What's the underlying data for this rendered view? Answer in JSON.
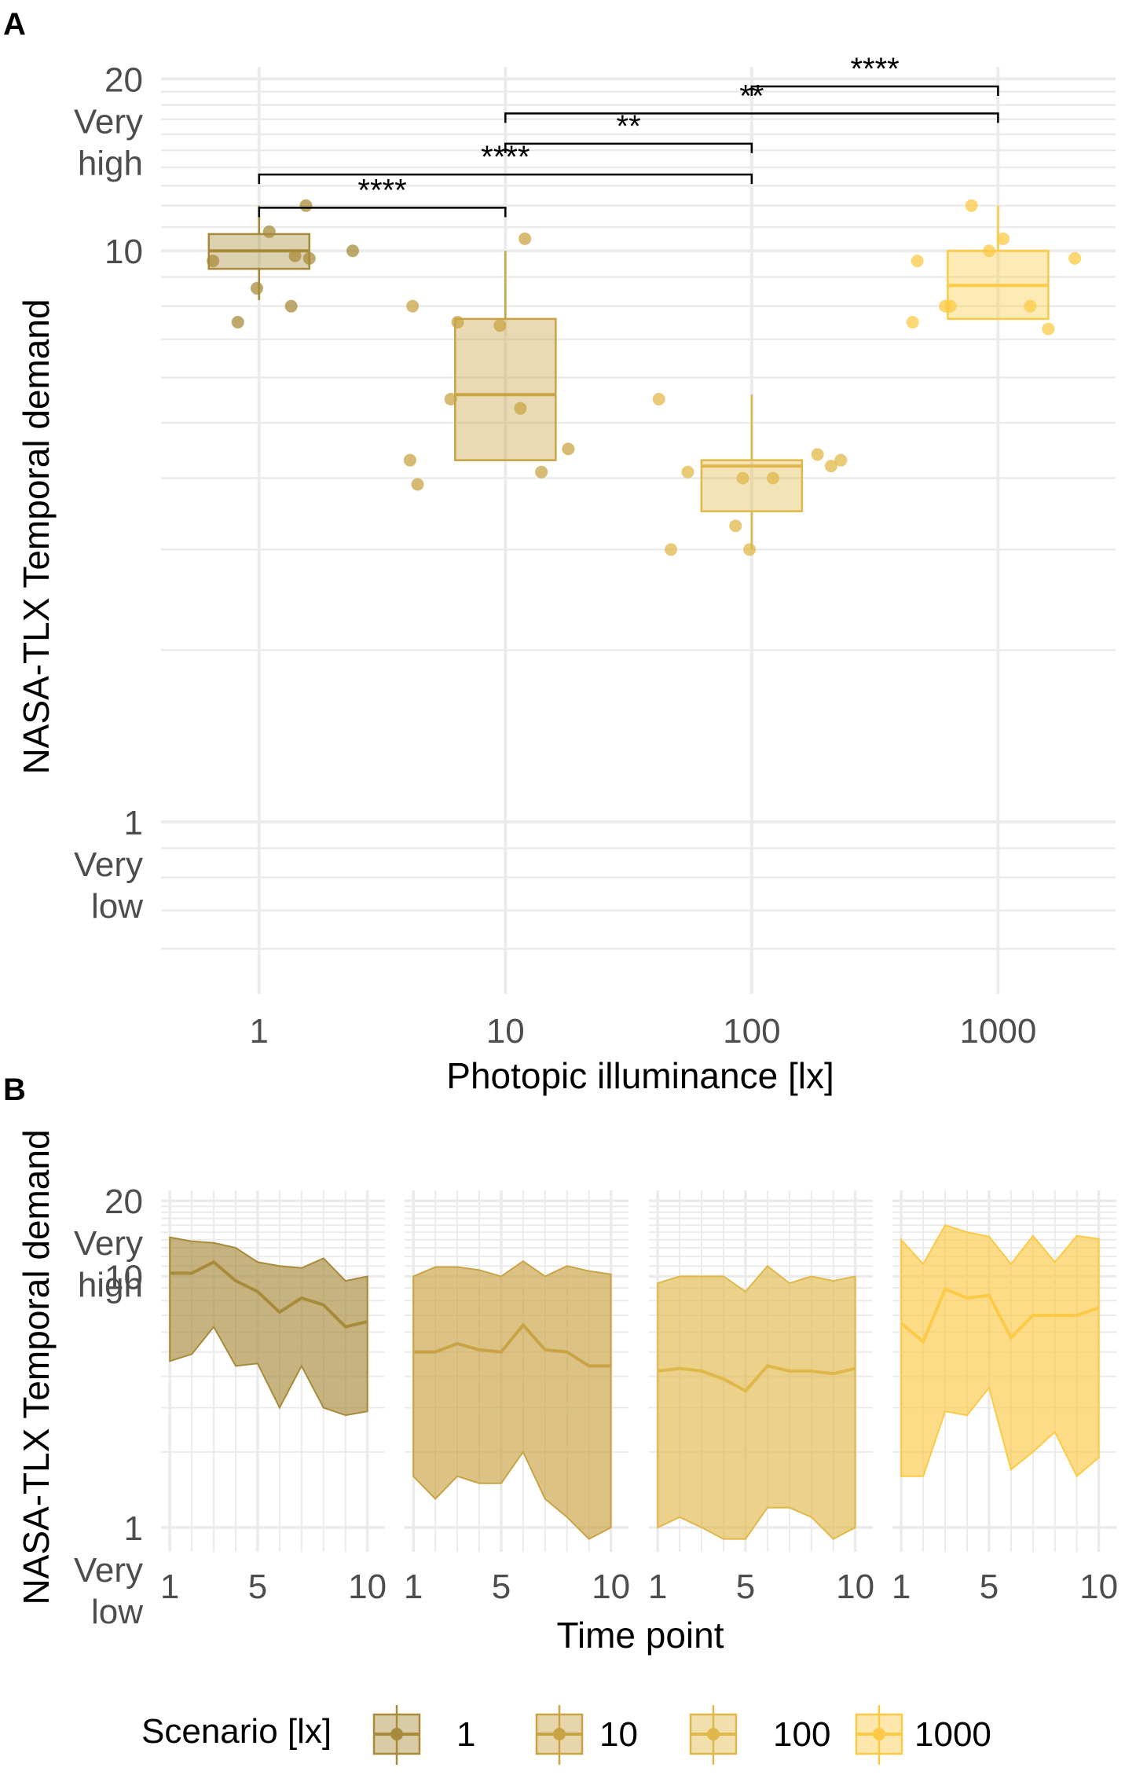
{
  "colors": {
    "1": "#a88b3a",
    "10": "#c9a344",
    "100": "#e0b84a",
    "1000": "#fcca46"
  },
  "chart_data": [
    {
      "panel": "A",
      "type": "box",
      "xlabel": "Photopic illuminance [lx]",
      "ylabel": "NASA-TLX Temporal demand",
      "x_scale": "log10",
      "xlim": [
        0.4,
        3000
      ],
      "ylim": [
        0.5,
        21
      ],
      "y_scale": "log10",
      "x_ticks": [
        "1",
        "10",
        "100",
        "1000"
      ],
      "y_tick_labels": [
        {
          "value": 20,
          "lines": [
            "20",
            "Very",
            "high"
          ]
        },
        {
          "value": 10,
          "lines": [
            "10"
          ]
        },
        {
          "value": 1,
          "lines": [
            "1",
            "Very",
            "low"
          ]
        }
      ],
      "boxes": [
        {
          "scenario": "1",
          "x": 1,
          "q1": 9.3,
          "median": 10.0,
          "q3": 10.7,
          "whisker_low": 8.2,
          "whisker_high": 12.0
        },
        {
          "scenario": "10",
          "x": 10,
          "q1": 4.3,
          "median": 5.6,
          "q3": 7.6,
          "whisker_low": 4.3,
          "whisker_high": 10.0
        },
        {
          "scenario": "100",
          "x": 100,
          "q1": 3.5,
          "median": 4.2,
          "q3": 4.3,
          "whisker_low": 3.0,
          "whisker_high": 5.6
        },
        {
          "scenario": "1000",
          "x": 1000,
          "q1": 7.6,
          "median": 8.7,
          "q3": 10.0,
          "whisker_low": 7.6,
          "whisker_high": 12.0
        }
      ],
      "points": [
        {
          "scenario": "1",
          "x": 1.55,
          "y": 12.0
        },
        {
          "scenario": "1",
          "x": 1.1,
          "y": 10.8
        },
        {
          "scenario": "1",
          "x": 2.4,
          "y": 10.0
        },
        {
          "scenario": "1",
          "x": 1.4,
          "y": 9.8
        },
        {
          "scenario": "1",
          "x": 1.6,
          "y": 9.7
        },
        {
          "scenario": "1",
          "x": 0.65,
          "y": 9.6
        },
        {
          "scenario": "1",
          "x": 0.98,
          "y": 8.6
        },
        {
          "scenario": "1",
          "x": 1.35,
          "y": 8.0
        },
        {
          "scenario": "1",
          "x": 0.82,
          "y": 7.5
        },
        {
          "scenario": "10",
          "x": 12.0,
          "y": 10.5
        },
        {
          "scenario": "10",
          "x": 4.2,
          "y": 8.0
        },
        {
          "scenario": "10",
          "x": 6.4,
          "y": 7.5
        },
        {
          "scenario": "10",
          "x": 9.5,
          "y": 7.4
        },
        {
          "scenario": "10",
          "x": 6.0,
          "y": 5.5
        },
        {
          "scenario": "10",
          "x": 11.5,
          "y": 5.3
        },
        {
          "scenario": "10",
          "x": 18.0,
          "y": 4.5
        },
        {
          "scenario": "10",
          "x": 4.1,
          "y": 4.3
        },
        {
          "scenario": "10",
          "x": 14.0,
          "y": 4.1
        },
        {
          "scenario": "10",
          "x": 4.4,
          "y": 3.9
        },
        {
          "scenario": "100",
          "x": 42,
          "y": 5.5
        },
        {
          "scenario": "100",
          "x": 185,
          "y": 4.4
        },
        {
          "scenario": "100",
          "x": 230,
          "y": 4.3
        },
        {
          "scenario": "100",
          "x": 210,
          "y": 4.2
        },
        {
          "scenario": "100",
          "x": 55,
          "y": 4.1
        },
        {
          "scenario": "100",
          "x": 92,
          "y": 4.0
        },
        {
          "scenario": "100",
          "x": 122,
          "y": 4.0
        },
        {
          "scenario": "100",
          "x": 86,
          "y": 3.3
        },
        {
          "scenario": "100",
          "x": 47,
          "y": 3.0
        },
        {
          "scenario": "100",
          "x": 98,
          "y": 3.0
        },
        {
          "scenario": "1000",
          "x": 780,
          "y": 12.0
        },
        {
          "scenario": "1000",
          "x": 1050,
          "y": 10.5
        },
        {
          "scenario": "1000",
          "x": 920,
          "y": 10.0
        },
        {
          "scenario": "1000",
          "x": 2050,
          "y": 9.7
        },
        {
          "scenario": "1000",
          "x": 470,
          "y": 9.6
        },
        {
          "scenario": "1000",
          "x": 610,
          "y": 8.0
        },
        {
          "scenario": "1000",
          "x": 640,
          "y": 8.0
        },
        {
          "scenario": "1000",
          "x": 1350,
          "y": 8.0
        },
        {
          "scenario": "1000",
          "x": 450,
          "y": 7.5
        },
        {
          "scenario": "1000",
          "x": 1600,
          "y": 7.3
        }
      ],
      "comparisons": [
        {
          "x1": 100,
          "x2": 1000,
          "y": 19.4,
          "label": "****"
        },
        {
          "x1": 10,
          "x2": 1000,
          "y": 17.4,
          "label": "**"
        },
        {
          "x1": 10,
          "x2": 100,
          "y": 15.4,
          "label": "**"
        },
        {
          "x1": 1,
          "x2": 100,
          "y": 13.6,
          "label": "****"
        },
        {
          "x1": 1,
          "x2": 10,
          "y": 11.9,
          "label": "****"
        }
      ]
    },
    {
      "panel": "B",
      "type": "area",
      "xlabel": "Time point",
      "ylabel": "NASA-TLX Temporal demand",
      "x_ticks": [
        "1",
        "5",
        "10"
      ],
      "x_tick_values": [
        1,
        5,
        10
      ],
      "xlim": [
        0.6,
        10.8
      ],
      "ylim": [
        0.8,
        22
      ],
      "y_scale": "log10",
      "y_tick_labels": [
        {
          "value": 20,
          "lines": [
            "20",
            "Very",
            "high"
          ]
        },
        {
          "value": 10,
          "lines": [
            "10"
          ]
        },
        {
          "value": 1,
          "lines": [
            "1",
            "Very",
            "low"
          ]
        }
      ],
      "x": [
        1,
        2,
        3,
        4,
        5,
        6,
        7,
        8,
        9,
        10
      ],
      "series": [
        {
          "name": "1",
          "mean": [
            10.3,
            10.3,
            11.4,
            9.6,
            8.7,
            7.2,
            8.2,
            7.7,
            6.3,
            6.6
          ],
          "upper": [
            14.3,
            13.8,
            13.6,
            13.0,
            11.4,
            11.0,
            10.8,
            11.8,
            9.6,
            10.0
          ],
          "lower": [
            4.6,
            4.9,
            6.3,
            4.4,
            4.5,
            3.0,
            4.4,
            3.0,
            2.8,
            2.9
          ]
        },
        {
          "name": "10",
          "mean": [
            5.0,
            5.0,
            5.4,
            5.1,
            5.0,
            6.4,
            5.1,
            5.0,
            4.4,
            4.4
          ],
          "upper": [
            10.0,
            10.9,
            10.9,
            10.6,
            10.0,
            11.5,
            10.0,
            11.0,
            10.5,
            10.2
          ],
          "lower": [
            1.6,
            1.3,
            1.6,
            1.5,
            1.5,
            2.0,
            1.3,
            1.1,
            0.9,
            1.0
          ]
        },
        {
          "name": "100",
          "mean": [
            4.2,
            4.3,
            4.2,
            3.9,
            3.5,
            4.4,
            4.2,
            4.2,
            4.1,
            4.3
          ],
          "upper": [
            9.4,
            10.0,
            10.0,
            10.0,
            8.7,
            11.0,
            9.4,
            10.0,
            9.6,
            10.0
          ],
          "lower": [
            1.0,
            1.1,
            1.0,
            0.9,
            0.9,
            1.2,
            1.2,
            1.1,
            0.9,
            1.0
          ]
        },
        {
          "name": "1000",
          "mean": [
            6.5,
            5.5,
            8.9,
            8.2,
            8.4,
            5.7,
            7.0,
            7.0,
            7.0,
            7.5
          ],
          "upper": [
            14.0,
            11.2,
            16.0,
            15.0,
            14.4,
            11.2,
            14.5,
            11.4,
            14.5,
            14.1
          ],
          "lower": [
            1.6,
            1.6,
            2.9,
            2.8,
            3.6,
            1.7,
            2.0,
            2.4,
            1.6,
            1.9
          ]
        }
      ]
    }
  ],
  "panel_labels": {
    "a": "A",
    "b": "B"
  },
  "legend": {
    "title": "Scenario [lx]",
    "entries": [
      "1",
      "10",
      "100",
      "1000"
    ]
  }
}
